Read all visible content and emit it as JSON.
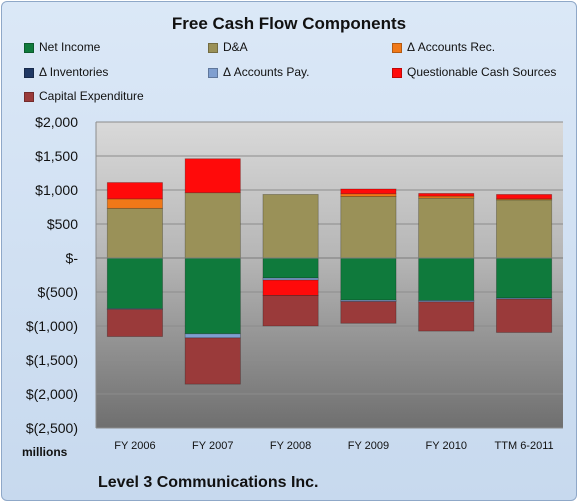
{
  "chart_data": {
    "type": "bar",
    "stacked": true,
    "title": "Free Cash Flow Components",
    "categories": [
      "FY 2006",
      "FY 2007",
      "FY 2008",
      "FY 2009",
      "FY 2010",
      "TTM 6-2011"
    ],
    "y_tick_labels": [
      "$2,000",
      "$1,500",
      "$1,000",
      "$500",
      "$-",
      "$(500)",
      "$(1,000)",
      "$(1,500)",
      "$(2,000)",
      "$(2,500)"
    ],
    "ylim": [
      -2500,
      2000
    ],
    "units_label": "millions",
    "grid": true,
    "legend_position": "top",
    "series": [
      {
        "name": "Net Income",
        "color": "#0f7a3c",
        "values": [
          -745,
          -1115,
          -295,
          -620,
          -625,
          -590
        ]
      },
      {
        "name": "D&A",
        "color": "#9a9158",
        "values": [
          730,
          960,
          935,
          905,
          880,
          855
        ]
      },
      {
        "name": "Δ Accounts Rec.",
        "color": "#f07818",
        "values": [
          140,
          0,
          0,
          40,
          30,
          15
        ]
      },
      {
        "name": "Δ Inventories",
        "color": "#1f3864",
        "values": [
          0,
          0,
          0,
          0,
          0,
          0
        ]
      },
      {
        "name": "Δ Accounts Pay.",
        "color": "#7f9fd0",
        "values": [
          -10,
          -60,
          -30,
          -20,
          -20,
          -15
        ]
      },
      {
        "name": "Questionable Cash Sources",
        "color": "#ff0a0a",
        "values": [
          240,
          500,
          -225,
          70,
          40,
          65
        ]
      },
      {
        "name": "Capital Expenditure",
        "color": "#9a3a3a",
        "values": [
          -400,
          -680,
          -450,
          -320,
          -430,
          -490
        ]
      }
    ]
  },
  "footer": {
    "units_label": "millions",
    "company": "Level 3 Communications Inc."
  }
}
